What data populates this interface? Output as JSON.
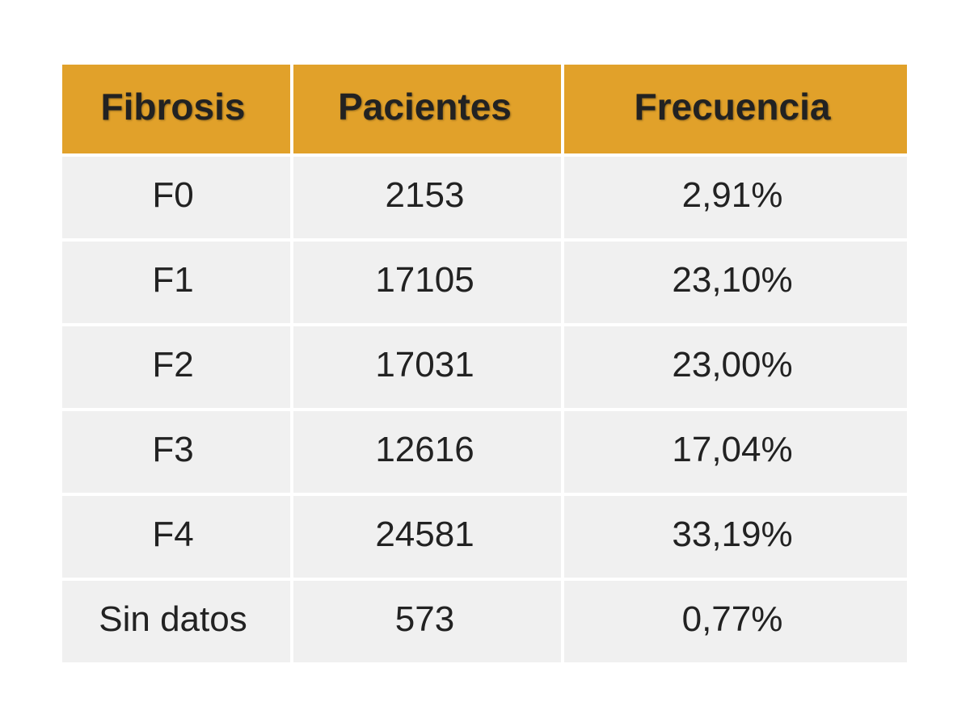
{
  "table": {
    "header_color": "#E1A12A",
    "row_color": "#F0F0F0",
    "headers": [
      "Fibrosis",
      "Pacientes",
      "Frecuencia"
    ],
    "rows": [
      {
        "fibrosis": "F0",
        "pacientes": "2153",
        "frecuencia": "2,91%"
      },
      {
        "fibrosis": "F1",
        "pacientes": "17105",
        "frecuencia": "23,10%"
      },
      {
        "fibrosis": "F2",
        "pacientes": "17031",
        "frecuencia": "23,00%"
      },
      {
        "fibrosis": "F3",
        "pacientes": "12616",
        "frecuencia": "17,04%"
      },
      {
        "fibrosis": "F4",
        "pacientes": "24581",
        "frecuencia": "33,19%"
      },
      {
        "fibrosis": "Sin datos",
        "pacientes": "573",
        "frecuencia": "0,77%"
      }
    ]
  }
}
